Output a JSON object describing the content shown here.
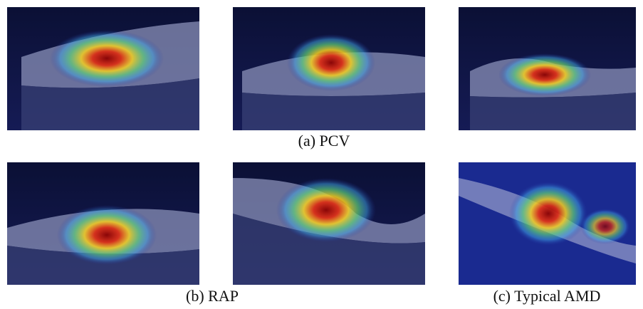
{
  "figure": {
    "captions": [
      "(a) PCV",
      "(b) RAP",
      "(c) Typical AMD"
    ]
  }
}
